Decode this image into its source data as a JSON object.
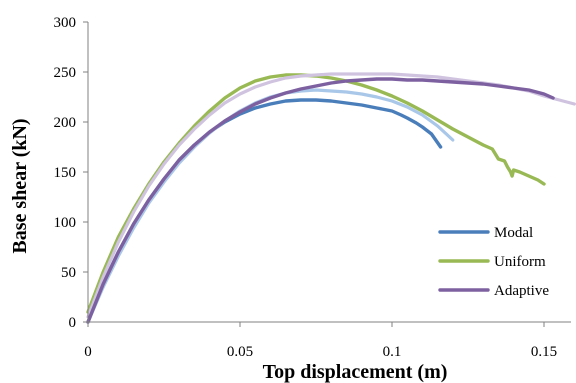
{
  "chart_data": {
    "type": "line",
    "title": "",
    "xlabel": "Top displacement (m)",
    "ylabel": "Base shear (kN)",
    "xlim": [
      0,
      0.16
    ],
    "ylim": [
      0,
      300
    ],
    "x_ticks": [
      0,
      0.05,
      0.1,
      0.15
    ],
    "x_tick_labels": [
      "0",
      "0.05",
      "0.1",
      "0.15"
    ],
    "y_ticks": [
      0,
      50,
      100,
      150,
      200,
      250,
      300
    ],
    "y_tick_labels": [
      "0",
      "50",
      "100",
      "150",
      "200",
      "250",
      "300"
    ],
    "grid": false,
    "legend_position": "bottom-right",
    "series": [
      {
        "name": "Modal",
        "color": "#4a7ebb",
        "points": [
          [
            0.0,
            0
          ],
          [
            0.005,
            38
          ],
          [
            0.01,
            70
          ],
          [
            0.015,
            98
          ],
          [
            0.02,
            122
          ],
          [
            0.025,
            143
          ],
          [
            0.03,
            162
          ],
          [
            0.035,
            177
          ],
          [
            0.04,
            190
          ],
          [
            0.045,
            200
          ],
          [
            0.05,
            208
          ],
          [
            0.055,
            214
          ],
          [
            0.06,
            218
          ],
          [
            0.065,
            221
          ],
          [
            0.07,
            222
          ],
          [
            0.075,
            222
          ],
          [
            0.08,
            221
          ],
          [
            0.085,
            219
          ],
          [
            0.09,
            217
          ],
          [
            0.095,
            214
          ],
          [
            0.1,
            211
          ],
          [
            0.103,
            207
          ],
          [
            0.105,
            204
          ],
          [
            0.108,
            199
          ],
          [
            0.11,
            195
          ],
          [
            0.113,
            188
          ],
          [
            0.116,
            175
          ]
        ]
      },
      {
        "name": "",
        "color": "#a9c7e8",
        "points": [
          [
            0.0,
            0
          ],
          [
            0.005,
            35
          ],
          [
            0.01,
            66
          ],
          [
            0.015,
            94
          ],
          [
            0.02,
            119
          ],
          [
            0.025,
            140
          ],
          [
            0.03,
            159
          ],
          [
            0.035,
            175
          ],
          [
            0.04,
            189
          ],
          [
            0.045,
            201
          ],
          [
            0.05,
            211
          ],
          [
            0.055,
            219
          ],
          [
            0.06,
            225
          ],
          [
            0.065,
            229
          ],
          [
            0.07,
            231
          ],
          [
            0.075,
            232
          ],
          [
            0.08,
            231
          ],
          [
            0.085,
            230
          ],
          [
            0.09,
            228
          ],
          [
            0.095,
            225
          ],
          [
            0.1,
            221
          ],
          [
            0.105,
            215
          ],
          [
            0.11,
            207
          ],
          [
            0.115,
            196
          ],
          [
            0.12,
            182
          ]
        ]
      },
      {
        "name": "Uniform",
        "color": "#98b954",
        "points": [
          [
            0.0,
            10
          ],
          [
            0.005,
            50
          ],
          [
            0.01,
            85
          ],
          [
            0.015,
            113
          ],
          [
            0.02,
            138
          ],
          [
            0.025,
            160
          ],
          [
            0.03,
            179
          ],
          [
            0.035,
            196
          ],
          [
            0.04,
            211
          ],
          [
            0.045,
            224
          ],
          [
            0.05,
            234
          ],
          [
            0.055,
            241
          ],
          [
            0.06,
            245
          ],
          [
            0.065,
            247
          ],
          [
            0.07,
            247
          ],
          [
            0.075,
            246
          ],
          [
            0.08,
            244
          ],
          [
            0.085,
            241
          ],
          [
            0.09,
            237
          ],
          [
            0.095,
            232
          ],
          [
            0.1,
            226
          ],
          [
            0.105,
            219
          ],
          [
            0.11,
            211
          ],
          [
            0.115,
            202
          ],
          [
            0.12,
            193
          ],
          [
            0.125,
            185
          ],
          [
            0.13,
            177
          ],
          [
            0.133,
            173
          ],
          [
            0.135,
            163
          ],
          [
            0.137,
            161
          ],
          [
            0.138,
            155
          ],
          [
            0.139,
            150
          ],
          [
            0.1395,
            146
          ],
          [
            0.14,
            152
          ],
          [
            0.142,
            150
          ],
          [
            0.145,
            146
          ],
          [
            0.148,
            142
          ],
          [
            0.15,
            138
          ]
        ]
      },
      {
        "name": "",
        "color": "#cfc3e0",
        "points": [
          [
            0.0,
            5
          ],
          [
            0.005,
            45
          ],
          [
            0.01,
            80
          ],
          [
            0.015,
            110
          ],
          [
            0.02,
            136
          ],
          [
            0.025,
            158
          ],
          [
            0.03,
            177
          ],
          [
            0.035,
            193
          ],
          [
            0.04,
            207
          ],
          [
            0.045,
            219
          ],
          [
            0.05,
            228
          ],
          [
            0.055,
            235
          ],
          [
            0.06,
            240
          ],
          [
            0.065,
            244
          ],
          [
            0.07,
            246
          ],
          [
            0.075,
            247
          ],
          [
            0.08,
            248
          ],
          [
            0.085,
            248
          ],
          [
            0.09,
            248
          ],
          [
            0.095,
            248
          ],
          [
            0.1,
            248
          ],
          [
            0.105,
            247
          ],
          [
            0.11,
            246
          ],
          [
            0.115,
            245
          ],
          [
            0.12,
            243
          ],
          [
            0.125,
            241
          ],
          [
            0.13,
            239
          ],
          [
            0.135,
            237
          ],
          [
            0.14,
            234
          ],
          [
            0.145,
            231
          ],
          [
            0.15,
            226
          ],
          [
            0.155,
            222
          ],
          [
            0.16,
            218
          ]
        ]
      },
      {
        "name": "Adaptive",
        "color": "#7d60a0",
        "points": [
          [
            0.0,
            0
          ],
          [
            0.005,
            38
          ],
          [
            0.01,
            70
          ],
          [
            0.015,
            98
          ],
          [
            0.02,
            122
          ],
          [
            0.025,
            143
          ],
          [
            0.03,
            162
          ],
          [
            0.035,
            177
          ],
          [
            0.04,
            190
          ],
          [
            0.045,
            201
          ],
          [
            0.05,
            210
          ],
          [
            0.055,
            218
          ],
          [
            0.06,
            224
          ],
          [
            0.065,
            229
          ],
          [
            0.07,
            233
          ],
          [
            0.075,
            236
          ],
          [
            0.08,
            239
          ],
          [
            0.085,
            241
          ],
          [
            0.09,
            242
          ],
          [
            0.095,
            243
          ],
          [
            0.1,
            243
          ],
          [
            0.105,
            242
          ],
          [
            0.11,
            242
          ],
          [
            0.115,
            241
          ],
          [
            0.12,
            240
          ],
          [
            0.125,
            239
          ],
          [
            0.13,
            238
          ],
          [
            0.135,
            236
          ],
          [
            0.14,
            234
          ],
          [
            0.145,
            232
          ],
          [
            0.15,
            228
          ],
          [
            0.153,
            224
          ]
        ]
      }
    ],
    "legend": [
      {
        "label": "Modal",
        "color": "#4a7ebb"
      },
      {
        "label": "Uniform",
        "color": "#98b954"
      },
      {
        "label": "Adaptive",
        "color": "#7d60a0"
      }
    ]
  }
}
